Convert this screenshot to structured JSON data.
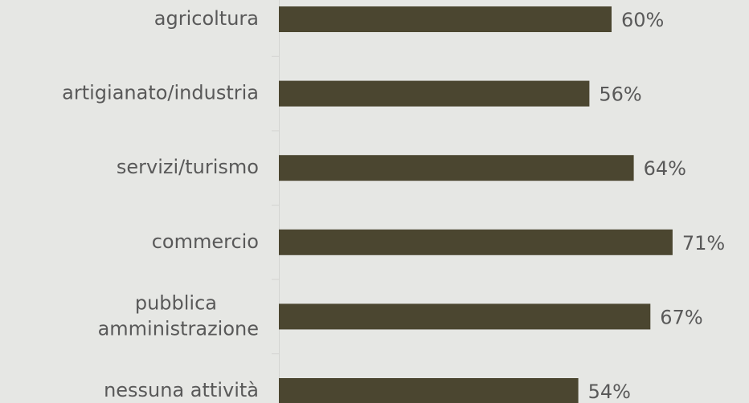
{
  "chart_data": {
    "type": "barh",
    "categories": [
      "agricoltura",
      "artigianato/industria",
      "servizi/turismo",
      "commercio",
      "pubblica amministrazione",
      "nessuna attività"
    ],
    "values": [
      60,
      56,
      64,
      71,
      67,
      54
    ],
    "value_labels": [
      "60%",
      "56%",
      "64%",
      "71%",
      "67%",
      "54%"
    ],
    "color": "#4b4630"
  }
}
